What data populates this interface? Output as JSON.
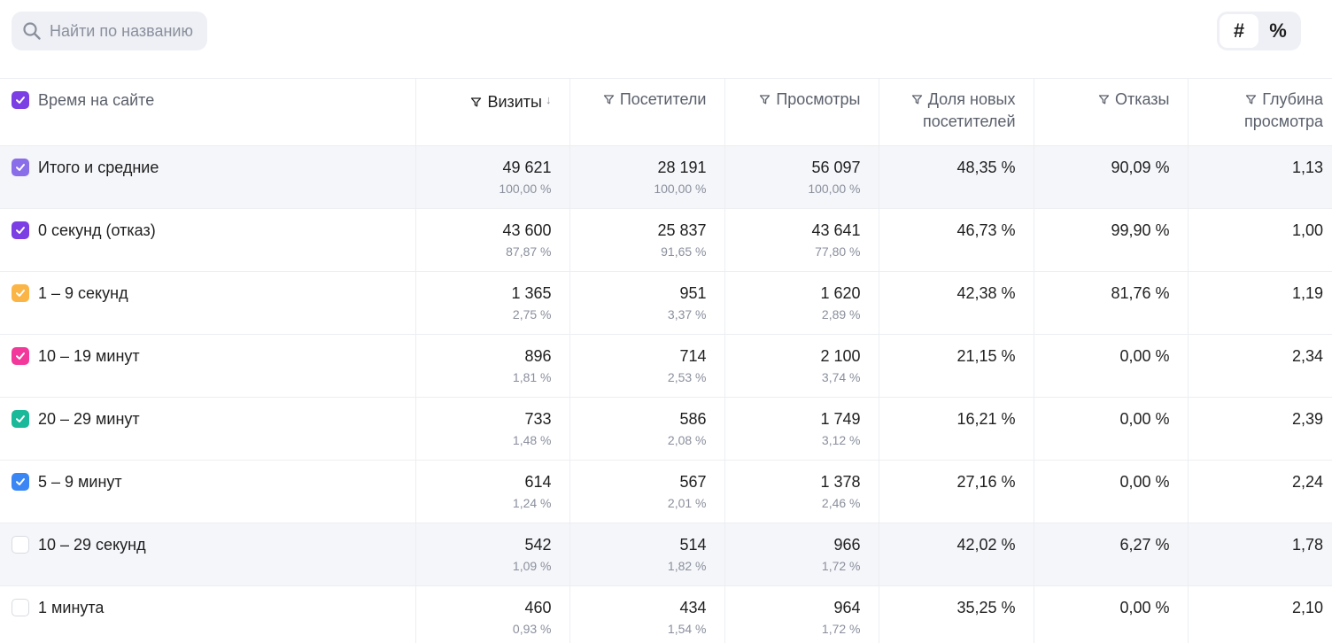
{
  "search": {
    "placeholder": "Найти по названию"
  },
  "view_toggle": {
    "absolute_label": "#",
    "percent_label": "%",
    "active": "absolute"
  },
  "table": {
    "dimension_header": "Время на сайте",
    "columns": [
      {
        "key": "visits",
        "label": "Визиты",
        "sorted": true,
        "sort_glyph": "↓"
      },
      {
        "key": "visitors",
        "label": "Посетители",
        "sorted": false
      },
      {
        "key": "pageviews",
        "label": "Просмотры",
        "sorted": false
      },
      {
        "key": "new_share",
        "label": "Доля новых посетителей",
        "sorted": false
      },
      {
        "key": "bounces",
        "label": "Отказы",
        "sorted": false
      },
      {
        "key": "depth",
        "label": "Глубина просмотра",
        "sorted": false
      }
    ],
    "rows": [
      {
        "label": "Итого и средние",
        "checked": true,
        "color": "#8a6de9",
        "shaded": true,
        "visits": "49 621",
        "visits_pct": "100,00 %",
        "visitors": "28 191",
        "visitors_pct": "100,00 %",
        "pageviews": "56 097",
        "pageviews_pct": "100,00 %",
        "new_share": "48,35 %",
        "bounces": "90,09 %",
        "depth": "1,13"
      },
      {
        "label": "0 секунд (отказ)",
        "checked": true,
        "color": "#7b3fe4",
        "shaded": false,
        "visits": "43 600",
        "visits_pct": "87,87 %",
        "visitors": "25 837",
        "visitors_pct": "91,65 %",
        "pageviews": "43 641",
        "pageviews_pct": "77,80 %",
        "new_share": "46,73 %",
        "bounces": "99,90 %",
        "depth": "1,00"
      },
      {
        "label": "1 – 9 секунд",
        "checked": true,
        "color": "#fbb446",
        "shaded": false,
        "visits": "1 365",
        "visits_pct": "2,75 %",
        "visitors": "951",
        "visitors_pct": "3,37 %",
        "pageviews": "1 620",
        "pageviews_pct": "2,89 %",
        "new_share": "42,38 %",
        "bounces": "81,76 %",
        "depth": "1,19"
      },
      {
        "label": "10 – 19 минут",
        "checked": true,
        "color": "#f2399b",
        "shaded": false,
        "visits": "896",
        "visits_pct": "1,81 %",
        "visitors": "714",
        "visitors_pct": "2,53 %",
        "pageviews": "2 100",
        "pageviews_pct": "3,74 %",
        "new_share": "21,15 %",
        "bounces": "0,00 %",
        "depth": "2,34"
      },
      {
        "label": "20 – 29 минут",
        "checked": true,
        "color": "#19b99a",
        "shaded": false,
        "visits": "733",
        "visits_pct": "1,48 %",
        "visitors": "586",
        "visitors_pct": "2,08 %",
        "pageviews": "1 749",
        "pageviews_pct": "3,12 %",
        "new_share": "16,21 %",
        "bounces": "0,00 %",
        "depth": "2,39"
      },
      {
        "label": "5 – 9 минут",
        "checked": true,
        "color": "#3a86f5",
        "shaded": false,
        "visits": "614",
        "visits_pct": "1,24 %",
        "visitors": "567",
        "visitors_pct": "2,01 %",
        "pageviews": "1 378",
        "pageviews_pct": "2,46 %",
        "new_share": "27,16 %",
        "bounces": "0,00 %",
        "depth": "2,24"
      },
      {
        "label": "10 – 29 секунд",
        "checked": false,
        "color": "",
        "shaded": true,
        "visits": "542",
        "visits_pct": "1,09 %",
        "visitors": "514",
        "visitors_pct": "1,82 %",
        "pageviews": "966",
        "pageviews_pct": "1,72 %",
        "new_share": "42,02 %",
        "bounces": "6,27 %",
        "depth": "1,78"
      },
      {
        "label": "1 минута",
        "checked": false,
        "color": "",
        "shaded": false,
        "visits": "460",
        "visits_pct": "0,93 %",
        "visitors": "434",
        "visitors_pct": "1,54 %",
        "pageviews": "964",
        "pageviews_pct": "1,72 %",
        "new_share": "35,25 %",
        "bounces": "0,00 %",
        "depth": "2,10"
      }
    ]
  },
  "colors": {
    "header_checkbox": "#7b3fe4",
    "border": "#eceef2",
    "muted_text": "#8a8f9c"
  }
}
